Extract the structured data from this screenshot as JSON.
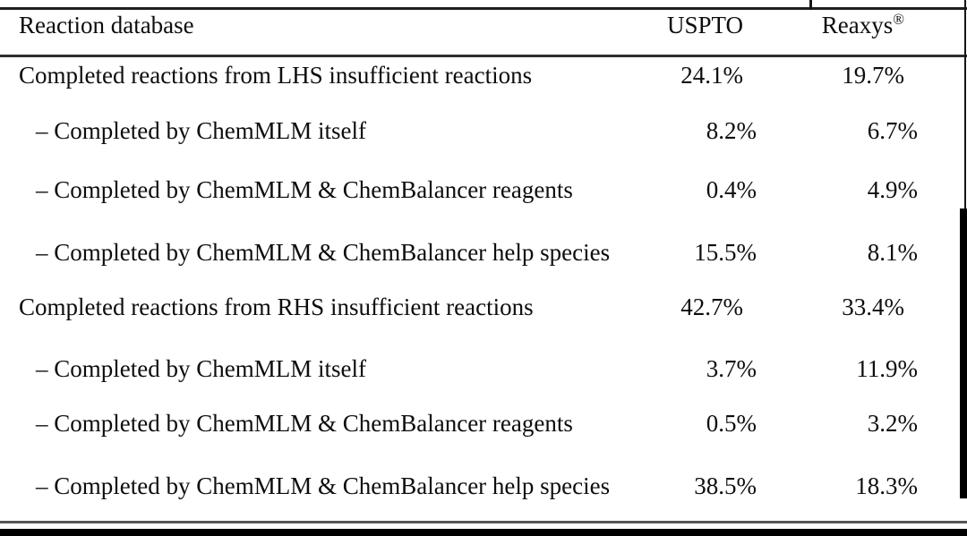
{
  "table": {
    "header": {
      "col1": "Reaction database",
      "col2": "USPTO",
      "col3_name": "Reaxys",
      "col3_sup": "®"
    },
    "rows": [
      {
        "label": "Completed reactions from LHS insufficient reactions",
        "uspto": "24.1%",
        "reaxys": "19.7%",
        "sub": false
      },
      {
        "label": "– Completed by ChemMLM itself",
        "uspto": "8.2%",
        "reaxys": "6.7%",
        "sub": true
      },
      {
        "label": "– Completed by ChemMLM & ChemBalancer reagents",
        "uspto": "0.4%",
        "reaxys": "4.9%",
        "sub": true
      },
      {
        "label": "– Completed by ChemMLM & ChemBalancer help species",
        "uspto": "15.5%",
        "reaxys": "8.1%",
        "sub": true
      },
      {
        "label": "Completed reactions from RHS insufficient reactions",
        "uspto": "42.7%",
        "reaxys": "33.4%",
        "sub": false
      },
      {
        "label": "– Completed by ChemMLM itself",
        "uspto": "3.7%",
        "reaxys": "11.9%",
        "sub": true
      },
      {
        "label": "– Completed by ChemMLM & ChemBalancer reagents",
        "uspto": "0.5%",
        "reaxys": "3.2%",
        "sub": true
      },
      {
        "label": "– Completed by ChemMLM & ChemBalancer help species",
        "uspto": "38.5%",
        "reaxys": "18.3%",
        "sub": true
      }
    ],
    "colors": {
      "text": "#0d0d0d",
      "top_rule": "#1f1f1f",
      "header_rule": "#2e2e2e",
      "bottom_rule": "#565656",
      "edge_bar": "#000000"
    }
  }
}
